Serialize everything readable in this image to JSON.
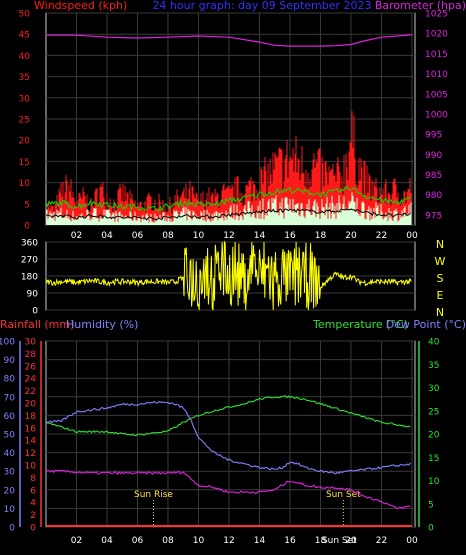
{
  "colors": {
    "background": "#000000",
    "frame": "#c8c8c8",
    "grid": "#3a3a3a",
    "wind": "#ff1a1a",
    "gust_fill": "#d9ffd9",
    "avg_wind": "#00dd00",
    "wind_dark": "#000000",
    "baro": "#e020e0",
    "direction": "#ffff00",
    "compass": "#ffff00",
    "rain": "#ff3030",
    "humidity": "#8080ff",
    "temperature": "#30e030",
    "dew_point": "#e020e0",
    "sun_event": "#ffe040",
    "tick": "#ffffff"
  },
  "top": {
    "left_label": "Windspeed (kph)",
    "center_label": "24 hour graph: day 09 September 2023",
    "right_label": "Barometer (hpa)"
  },
  "middle": {
    "compass": [
      "N",
      "W",
      "S",
      "E",
      "N"
    ]
  },
  "bottom": {
    "rain_label": "Rainfall (mm)",
    "humidity_label": "Humidity (%)",
    "temp_label": "Temperature (°C)",
    "dew_label": "Dew Point (°C)",
    "sunrise_label": "Sun Rise",
    "sunset_label": "Sun Set",
    "bottom_time_label": "Sun Set"
  },
  "chart_data": [
    {
      "type": "line",
      "name": "wind-barometer",
      "x_ticks": [
        "02",
        "04",
        "06",
        "08",
        "10",
        "12",
        "14",
        "16",
        "18",
        "20",
        "22",
        "00"
      ],
      "x_tick_hours": [
        2,
        4,
        6,
        8,
        10,
        12,
        14,
        16,
        18,
        20,
        22,
        24
      ],
      "xlim": [
        0,
        24.2
      ],
      "wind_axis": {
        "ticks": [
          0,
          5,
          10,
          15,
          20,
          25,
          30,
          35,
          40,
          45,
          50
        ],
        "ylim": [
          0,
          50
        ]
      },
      "baro_axis": {
        "ticks": [
          975,
          980,
          985,
          990,
          995,
          1000,
          1005,
          1010,
          1015,
          1020,
          1025
        ],
        "ylim": [
          972.5,
          1025
        ]
      },
      "series": [
        {
          "key": "gust",
          "x": [
            0.0,
            0.5,
            1.0,
            1.5,
            2.0,
            2.5,
            3.0,
            3.5,
            4.0,
            4.5,
            5.0,
            5.5,
            6.0,
            6.5,
            7.0,
            7.5,
            8.0,
            8.5,
            9.0,
            9.5,
            10.0,
            10.5,
            11.0,
            11.5,
            12.0,
            12.5,
            13.0,
            13.5,
            14.0,
            14.5,
            15.0,
            15.5,
            16.0,
            16.5,
            17.0,
            17.5,
            18.0,
            18.5,
            19.0,
            19.5,
            20.0,
            20.5,
            21.0,
            21.5,
            22.0,
            22.5,
            23.0,
            23.5,
            24.0
          ],
          "y": [
            7,
            4,
            9,
            11,
            6,
            8,
            5,
            10,
            8,
            6,
            9,
            7,
            5,
            6,
            7,
            6,
            5,
            7,
            8,
            9,
            6,
            8,
            7,
            9,
            8,
            10,
            9,
            11,
            12,
            14,
            16,
            17,
            19,
            18,
            16,
            17,
            15,
            14,
            13,
            15,
            25,
            17,
            12,
            10,
            9,
            9,
            10,
            8,
            11
          ]
        },
        {
          "key": "average",
          "x": [
            0,
            1,
            2,
            3,
            4,
            5,
            6,
            7,
            8,
            9,
            10,
            11,
            12,
            13,
            14,
            15,
            16,
            17,
            18,
            19,
            20,
            21,
            22,
            23,
            24
          ],
          "y": [
            3.5,
            4,
            3,
            4,
            3.5,
            3,
            3,
            2.5,
            3,
            4,
            3.5,
            3.5,
            4.5,
            5,
            6,
            6.5,
            7,
            6.5,
            6,
            6.5,
            7.5,
            5.5,
            4.5,
            4,
            5
          ]
        },
        {
          "key": "baro",
          "x": [
            0,
            2,
            4,
            6,
            8,
            10,
            12,
            14,
            15,
            16,
            17,
            18,
            19,
            20,
            21,
            22,
            23,
            24
          ],
          "y": [
            1019.5,
            1019.5,
            1019,
            1018.8,
            1019,
            1019.3,
            1019,
            1017.8,
            1017,
            1016.8,
            1016.8,
            1016.8,
            1016.9,
            1017.2,
            1018.2,
            1019,
            1019.3,
            1019.6
          ]
        }
      ]
    },
    {
      "type": "scatter",
      "name": "wind-direction",
      "x_ticks": [],
      "ylim": [
        0,
        360
      ],
      "y_ticks": [
        0,
        90,
        180,
        270,
        360
      ],
      "xlim": [
        0,
        24.2
      ],
      "series": [
        {
          "key": "direction",
          "x": [
            0.0,
            0.5,
            1.0,
            1.5,
            2.0,
            2.5,
            3.0,
            3.5,
            4.0,
            4.5,
            5.0,
            5.5,
            6.0,
            6.5,
            7.0,
            7.5,
            8.0,
            8.5,
            9.0,
            9.5,
            10.0,
            10.5,
            11.0,
            11.5,
            12.0,
            12.5,
            13.0,
            13.5,
            14.0,
            14.5,
            15.0,
            15.5,
            16.0,
            16.5,
            17.0,
            17.5,
            18.0,
            18.5,
            19.0,
            19.5,
            20.0,
            20.5,
            21.0,
            21.5,
            22.0,
            22.5,
            23.0,
            23.5,
            24.0
          ],
          "y": [
            150,
            145,
            150,
            150,
            145,
            150,
            155,
            150,
            145,
            150,
            150,
            150,
            145,
            150,
            150,
            150,
            145,
            150,
            170,
            200,
            90,
            320,
            40,
            300,
            160,
            310,
            80,
            340,
            150,
            280,
            60,
            200,
            110,
            240,
            120,
            130,
            120,
            160,
            190,
            170,
            180,
            150,
            145,
            150,
            150,
            150,
            145,
            150,
            150
          ]
        }
      ]
    },
    {
      "type": "line",
      "name": "rain-humidity-temperature",
      "x_ticks": [
        "02",
        "04",
        "06",
        "08",
        "10",
        "12",
        "14",
        "16",
        "18",
        "20",
        "22",
        "00"
      ],
      "x_tick_hours": [
        2,
        4,
        6,
        8,
        10,
        12,
        14,
        16,
        18,
        20,
        22,
        24
      ],
      "xlim": [
        0,
        24.2
      ],
      "humidity_axis": {
        "ticks": [
          0,
          10,
          20,
          30,
          40,
          50,
          60,
          70,
          80,
          90,
          100
        ],
        "ylim": [
          0,
          100
        ]
      },
      "rain_axis": {
        "ticks": [
          0,
          2,
          4,
          6,
          8,
          10,
          12,
          14,
          16,
          18,
          20,
          22,
          24,
          26,
          28,
          30
        ],
        "ylim": [
          0,
          30
        ]
      },
      "temp_axis": {
        "ticks": [
          0,
          5,
          10,
          15,
          20,
          25,
          30,
          35,
          40
        ],
        "ylim": [
          0,
          40
        ]
      },
      "sun_events": {
        "sunrise_hour": 7.05,
        "sunset_hour": 19.5
      },
      "series": [
        {
          "key": "rain",
          "x": [
            0,
            24
          ],
          "y": [
            0,
            0
          ]
        },
        {
          "key": "humidity",
          "x": [
            0,
            1,
            2,
            3,
            4,
            5,
            6,
            7,
            8,
            8.5,
            9,
            9.5,
            10,
            10.5,
            11,
            12,
            13,
            14,
            15,
            15.5,
            16,
            16.5,
            17,
            18,
            19,
            20,
            21,
            22,
            23,
            24
          ],
          "y": [
            56,
            57,
            62,
            63,
            64,
            66,
            66,
            67,
            67,
            66,
            64,
            58,
            48,
            44,
            40,
            36,
            34,
            32,
            31,
            32,
            35,
            34,
            32,
            30,
            29,
            30,
            31,
            32,
            33,
            34
          ]
        },
        {
          "key": "temperature",
          "x": [
            0,
            1,
            2,
            3,
            4,
            5,
            6,
            7,
            8,
            8.5,
            9,
            10,
            11,
            12,
            13,
            14,
            15,
            16,
            17,
            18,
            19,
            20,
            21,
            22,
            23,
            24
          ],
          "y": [
            22.5,
            21.5,
            20.5,
            20.5,
            20.5,
            20,
            19.8,
            20.2,
            20.6,
            21.5,
            22.5,
            24,
            25,
            25.8,
            26.5,
            27.5,
            28,
            28,
            27.5,
            26.5,
            25.5,
            24.5,
            23.5,
            22.5,
            22,
            21.5
          ]
        },
        {
          "key": "dew_point",
          "x": [
            0,
            1,
            2,
            3,
            4,
            5,
            6,
            7,
            8,
            9,
            10,
            11,
            12,
            13,
            14,
            15,
            15.5,
            16,
            16.5,
            17,
            18,
            19,
            20,
            21,
            22,
            23,
            24
          ],
          "y": [
            12,
            12,
            11.8,
            11.6,
            11.6,
            11.6,
            11.6,
            11.6,
            11.6,
            11.8,
            9,
            8.5,
            7.5,
            7.5,
            7.5,
            8,
            9,
            10,
            9.5,
            9,
            8.5,
            8.5,
            8,
            6.5,
            5.5,
            4,
            4.5
          ]
        }
      ]
    }
  ]
}
